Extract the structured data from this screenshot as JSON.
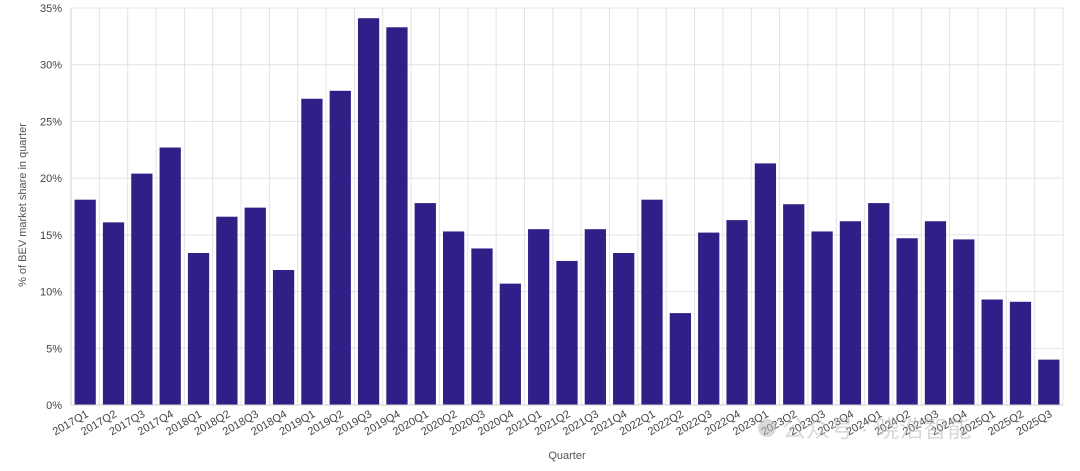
{
  "chart_data": {
    "type": "bar",
    "title": "",
    "xlabel": "Quarter",
    "ylabel": "% of BEV market share in quarter",
    "ylim": [
      0,
      35
    ],
    "yticks": [
      0,
      5,
      10,
      15,
      20,
      25,
      30,
      35
    ],
    "ytick_suffix": "%",
    "grid": true,
    "bar_color": "#311e87",
    "categories": [
      "2017Q1",
      "2017Q2",
      "2017Q3",
      "2017Q4",
      "2018Q1",
      "2018Q2",
      "2018Q3",
      "2018Q4",
      "2019Q1",
      "2019Q2",
      "2019Q3",
      "2019Q4",
      "2020Q1",
      "2020Q2",
      "2020Q3",
      "2020Q4",
      "2021Q1",
      "2021Q2",
      "2021Q3",
      "2021Q4",
      "2022Q1",
      "2022Q2",
      "2022Q3",
      "2022Q4",
      "2023Q1",
      "2023Q2",
      "2023Q3",
      "2023Q4",
      "2024Q1",
      "2024Q2",
      "2024Q3",
      "2024Q4",
      "2025Q1",
      "2025Q2",
      "2025Q3"
    ],
    "values": [
      18.1,
      16.1,
      20.4,
      22.7,
      13.4,
      16.6,
      17.4,
      11.9,
      27.0,
      27.7,
      34.1,
      33.3,
      17.8,
      15.3,
      13.8,
      10.7,
      15.5,
      12.7,
      15.5,
      13.4,
      18.1,
      8.1,
      15.2,
      16.3,
      21.3,
      17.7,
      15.3,
      16.2,
      17.8,
      14.7,
      16.2,
      14.6,
      9.3,
      9.1,
      4.0
    ]
  },
  "watermark": {
    "text": "公众号 · 晓浩智能"
  }
}
